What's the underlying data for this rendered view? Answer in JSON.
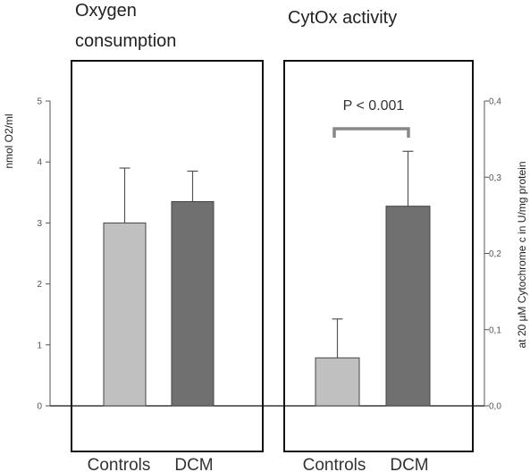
{
  "chart_data": [
    {
      "type": "bar",
      "title": [
        "Oxygen",
        "consumption"
      ],
      "ylabel": "nmol O2/ml",
      "categories": [
        "Controls",
        "DCM"
      ],
      "values": [
        3.0,
        3.35
      ],
      "errors": [
        0.9,
        0.5
      ],
      "ylim": [
        0,
        5
      ],
      "yticks": [
        "0",
        "1",
        "2",
        "3",
        "4",
        "5"
      ],
      "colors": [
        "#c0c0c0",
        "#707070"
      ],
      "grid": false
    },
    {
      "type": "bar",
      "title": "CytOx activity",
      "ylabel": "at 20 µM Cytochrome c in U/mg protein",
      "categories": [
        "Controls",
        "DCM"
      ],
      "values": [
        0.063,
        0.262
      ],
      "errors": [
        0.051,
        0.072
      ],
      "ylim": [
        0,
        0.4
      ],
      "yticks": [
        "0,0",
        "0,1",
        "0,2",
        "0,3",
        "0,4"
      ],
      "colors": [
        "#c0c0c0",
        "#707070"
      ],
      "annotation": "P < 0.001",
      "grid": false
    }
  ]
}
